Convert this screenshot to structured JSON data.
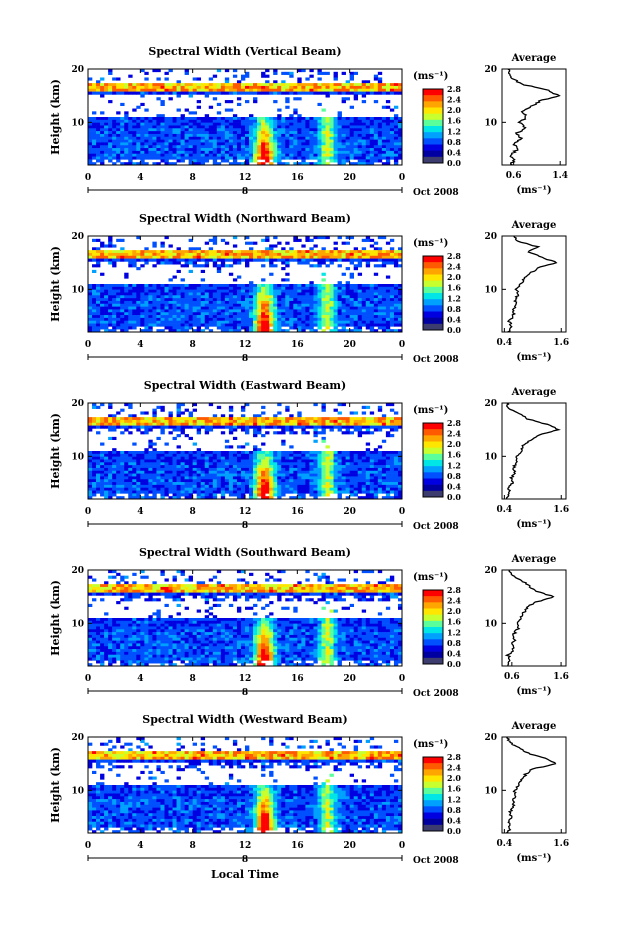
{
  "figure": {
    "xlabel_bottom": "Local Time"
  },
  "colorbar": {
    "unit_label": "(ms⁻¹)",
    "ticks": [
      "2.8",
      "2.4",
      "2.0",
      "1.6",
      "1.2",
      "0.8",
      "0.4",
      "0.0"
    ],
    "colors": [
      "#ff0000",
      "#ff5a00",
      "#ffa500",
      "#ffe600",
      "#c8ff2e",
      "#5aff9b",
      "#00e5e5",
      "#00a0ff",
      "#0050ff",
      "#0000e0",
      "#0000a0",
      "#3c3c6e"
    ]
  },
  "chart_data": [
    {
      "type": "heatmap",
      "title": "Spectral Width (Vertical Beam)",
      "ylabel": "Height (km)",
      "x_ticks": [
        "0",
        "4",
        "8",
        "12",
        "16",
        "20",
        "0"
      ],
      "date_marker": "8",
      "date_label": "Oct 2008",
      "xlim": [
        0,
        24
      ],
      "ylim": [
        2,
        20
      ],
      "y_ticks": [
        "20",
        "10"
      ],
      "avg": {
        "title": "Average",
        "unit_label": "(ms⁻¹)",
        "x_ticks": [
          "0.6",
          "1.4"
        ],
        "xlim": [
          0.4,
          1.5
        ],
        "profile": [
          [
            0.56,
            2
          ],
          [
            0.6,
            3
          ],
          [
            0.55,
            4
          ],
          [
            0.68,
            5
          ],
          [
            0.6,
            6
          ],
          [
            0.72,
            7
          ],
          [
            0.66,
            8
          ],
          [
            0.8,
            9
          ],
          [
            0.7,
            10
          ],
          [
            0.82,
            11
          ],
          [
            0.74,
            12
          ],
          [
            0.9,
            13
          ],
          [
            1.05,
            14
          ],
          [
            1.38,
            15
          ],
          [
            1.2,
            16
          ],
          [
            0.8,
            17
          ],
          [
            0.6,
            18
          ],
          [
            0.52,
            19
          ],
          [
            0.5,
            20
          ]
        ]
      }
    },
    {
      "type": "heatmap",
      "title": "Spectral Width (Northward Beam)",
      "ylabel": "Height (km)",
      "x_ticks": [
        "0",
        "4",
        "8",
        "12",
        "16",
        "20",
        "0"
      ],
      "date_marker": "8",
      "date_label": "Oct 2008",
      "xlim": [
        0,
        24
      ],
      "ylim": [
        2,
        20
      ],
      "y_ticks": [
        "20",
        "10"
      ],
      "avg": {
        "title": "Average",
        "unit_label": "(ms⁻¹)",
        "x_ticks": [
          "0.4",
          "1.6"
        ],
        "xlim": [
          0.35,
          1.7
        ],
        "profile": [
          [
            0.48,
            2
          ],
          [
            0.55,
            3
          ],
          [
            0.5,
            4
          ],
          [
            0.6,
            5
          ],
          [
            0.58,
            6
          ],
          [
            0.65,
            7
          ],
          [
            0.62,
            8
          ],
          [
            0.7,
            9
          ],
          [
            0.66,
            10
          ],
          [
            0.75,
            11
          ],
          [
            0.82,
            12
          ],
          [
            0.95,
            13
          ],
          [
            1.1,
            14
          ],
          [
            1.5,
            15
          ],
          [
            1.2,
            16
          ],
          [
            0.9,
            17
          ],
          [
            1.1,
            18
          ],
          [
            0.7,
            19
          ],
          [
            0.6,
            20
          ]
        ]
      }
    },
    {
      "type": "heatmap",
      "title": "Spectral Width (Eastward Beam)",
      "ylabel": "Height (km)",
      "x_ticks": [
        "0",
        "4",
        "8",
        "12",
        "16",
        "20",
        "0"
      ],
      "date_marker": "8",
      "date_label": "Oct 2008",
      "xlim": [
        0,
        24
      ],
      "ylim": [
        2,
        20
      ],
      "y_ticks": [
        "20",
        "10"
      ],
      "avg": {
        "title": "Average",
        "unit_label": "(ms⁻¹)",
        "x_ticks": [
          "0.4",
          "1.6"
        ],
        "xlim": [
          0.35,
          1.7
        ],
        "profile": [
          [
            0.46,
            2
          ],
          [
            0.52,
            3
          ],
          [
            0.48,
            4
          ],
          [
            0.58,
            5
          ],
          [
            0.55,
            6
          ],
          [
            0.62,
            7
          ],
          [
            0.6,
            8
          ],
          [
            0.68,
            9
          ],
          [
            0.66,
            10
          ],
          [
            0.75,
            11
          ],
          [
            0.8,
            12
          ],
          [
            0.95,
            13
          ],
          [
            1.15,
            14
          ],
          [
            1.55,
            15
          ],
          [
            1.3,
            16
          ],
          [
            0.9,
            17
          ],
          [
            0.7,
            18
          ],
          [
            0.5,
            19
          ],
          [
            0.45,
            20
          ]
        ]
      }
    },
    {
      "type": "heatmap",
      "title": "Spectral Width (Southward Beam)",
      "ylabel": "Height (km)",
      "x_ticks": [
        "0",
        "4",
        "8",
        "12",
        "16",
        "20",
        "0"
      ],
      "date_marker": "8",
      "date_label": "Oct 2008",
      "xlim": [
        0,
        24
      ],
      "ylim": [
        2,
        20
      ],
      "y_ticks": [
        "20",
        "10"
      ],
      "avg": {
        "title": "Average",
        "unit_label": "(ms⁻¹)",
        "x_ticks": [
          "0.6",
          "1.6"
        ],
        "xlim": [
          0.4,
          1.7
        ],
        "profile": [
          [
            0.5,
            2
          ],
          [
            0.58,
            3
          ],
          [
            0.52,
            4
          ],
          [
            0.62,
            5
          ],
          [
            0.6,
            6
          ],
          [
            0.66,
            7
          ],
          [
            0.64,
            8
          ],
          [
            0.72,
            9
          ],
          [
            0.7,
            10
          ],
          [
            0.78,
            11
          ],
          [
            0.84,
            12
          ],
          [
            0.9,
            13
          ],
          [
            1.1,
            14
          ],
          [
            1.45,
            15
          ],
          [
            1.1,
            16
          ],
          [
            0.95,
            17
          ],
          [
            0.8,
            18
          ],
          [
            0.6,
            19
          ],
          [
            0.55,
            20
          ]
        ]
      }
    },
    {
      "type": "heatmap",
      "title": "Spectral Width (Westward Beam)",
      "ylabel": "Height (km)",
      "x_ticks": [
        "0",
        "4",
        "8",
        "12",
        "16",
        "20",
        "0"
      ],
      "date_marker": "8",
      "date_label": "Oct 2008",
      "xlim": [
        0,
        24
      ],
      "ylim": [
        2,
        20
      ],
      "y_ticks": [
        "20",
        "10"
      ],
      "avg": {
        "title": "Average",
        "unit_label": "(ms⁻¹)",
        "x_ticks": [
          "0.4",
          "1.6"
        ],
        "xlim": [
          0.35,
          1.7
        ],
        "profile": [
          [
            0.46,
            2
          ],
          [
            0.52,
            3
          ],
          [
            0.48,
            4
          ],
          [
            0.55,
            5
          ],
          [
            0.52,
            6
          ],
          [
            0.6,
            7
          ],
          [
            0.58,
            8
          ],
          [
            0.64,
            9
          ],
          [
            0.62,
            10
          ],
          [
            0.7,
            11
          ],
          [
            0.75,
            12
          ],
          [
            0.85,
            13
          ],
          [
            1.0,
            14
          ],
          [
            1.5,
            15
          ],
          [
            1.25,
            16
          ],
          [
            0.9,
            17
          ],
          [
            0.7,
            18
          ],
          [
            0.5,
            19
          ],
          [
            0.45,
            20
          ]
        ]
      }
    }
  ]
}
